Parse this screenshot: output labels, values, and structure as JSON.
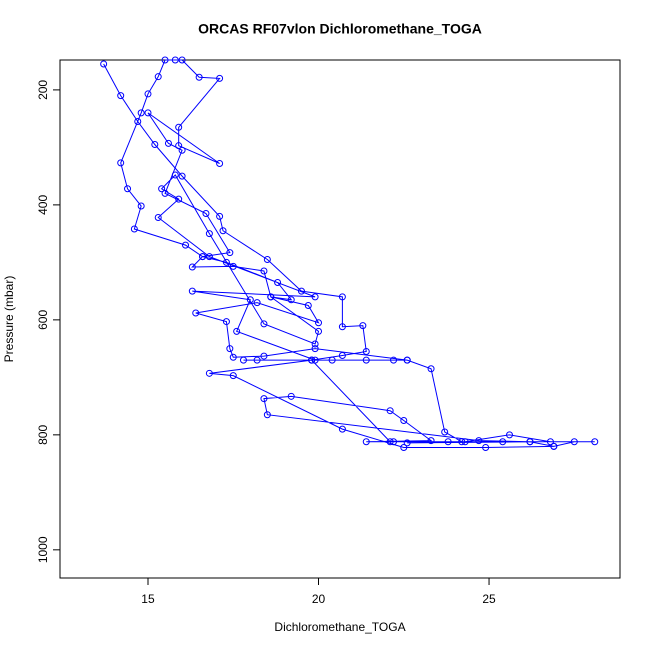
{
  "chart_data": {
    "type": "line",
    "title": "ORCAS RF07vlon Dichloromethane_TOGA",
    "x_label": "Dichloromethane_TOGA",
    "y_label": "Pressure (mbar)",
    "xlim": [
      12.42,
      28.84
    ],
    "ylim": [
      1049,
      148
    ],
    "xticks": [
      15,
      20,
      25
    ],
    "yticks": [
      200,
      400,
      600,
      800,
      1000
    ],
    "series": [
      {
        "color": "#0000ff",
        "x": [
          13.7,
          14.2,
          14.7,
          15.2,
          16.0,
          17.1,
          17.2,
          18.5,
          19.5,
          20.7,
          20.7,
          21.3,
          21.4,
          20.7,
          19.8,
          22.6,
          23.3,
          23.7,
          24.2,
          28.1,
          25.4,
          22.2,
          21.4,
          23.3,
          22.5,
          22.1,
          19.2,
          18.4,
          18.5,
          24.7,
          26.2,
          26.9,
          24.9,
          22.5,
          20.7,
          17.5,
          16.8,
          19.8,
          17.8,
          18.2,
          20.4,
          21.4,
          22.2,
          22.6,
          19.9,
          18.4,
          17.5,
          17.4,
          17.3,
          16.4,
          18.2,
          20.0,
          19.7,
          18.6,
          18.4,
          17.5,
          16.3,
          16.6,
          16.1,
          14.6,
          14.8,
          14.4,
          14.2,
          14.8,
          15.0,
          15.3,
          15.5,
          15.8,
          16.0,
          16.5,
          17.1,
          15.9,
          15.9,
          17.1,
          15.0,
          15.6,
          16.0,
          15.5,
          16.7,
          17.4,
          16.6,
          17.3,
          18.8,
          19.2,
          18.6,
          20.0,
          19.9,
          18.4,
          16.8,
          15.8,
          15.4,
          15.9,
          15.3,
          16.8,
          19.9,
          16.3,
          18.0,
          17.6,
          19.9,
          19.8,
          22.1,
          23.8,
          24.3,
          25.6,
          26.8,
          27.5,
          26.9,
          26.2,
          22.6
        ],
        "values": [
          155,
          210,
          255,
          295,
          350,
          420,
          445,
          495,
          550,
          560,
          612,
          610,
          655,
          662,
          670,
          670,
          685,
          795,
          812,
          812,
          812,
          812,
          812,
          810,
          775,
          758,
          733,
          737,
          765,
          810,
          812,
          820,
          822,
          822,
          790,
          697,
          693,
          670,
          670,
          670,
          670,
          670,
          670,
          670,
          650,
          663,
          665,
          650,
          603,
          588,
          570,
          605,
          575,
          560,
          515,
          507,
          508,
          490,
          470,
          442,
          402,
          372,
          327,
          240,
          207,
          177,
          148,
          148,
          148,
          178,
          180,
          265,
          297,
          328,
          240,
          293,
          305,
          380,
          415,
          483,
          490,
          500,
          535,
          565,
          560,
          620,
          642,
          607,
          450,
          348,
          372,
          390,
          422,
          490,
          560,
          550,
          565,
          620,
          670,
          670,
          812,
          812,
          812,
          800,
          812,
          812,
          820,
          812,
          814
        ]
      }
    ]
  }
}
